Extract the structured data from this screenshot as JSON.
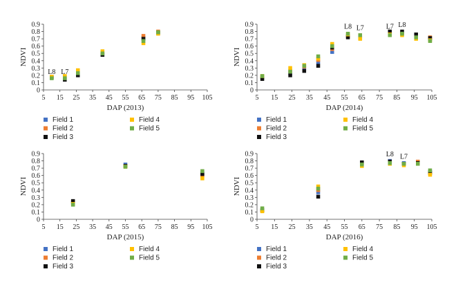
{
  "chart_data": [
    {
      "type": "scatter",
      "xlabel": "DAP (2013)",
      "ylabel": "NDVI",
      "xlim": [
        5,
        105
      ],
      "ylim": [
        0,
        0.9
      ],
      "xticks": [
        "5",
        "15",
        "25",
        "35",
        "45",
        "55",
        "65",
        "75",
        "85",
        "95",
        "105"
      ],
      "yticks": [
        "0",
        "0.1",
        "0.2",
        "0.3",
        "0.4",
        "0.5",
        "0.6",
        "0.7",
        "0.8",
        "0.9"
      ],
      "series": [
        {
          "name": "Field 1",
          "color": "#4472c4",
          "points": [
            [
              10,
              0.17
            ],
            [
              18,
              0.16
            ],
            [
              26,
              0.22
            ],
            [
              41,
              0.49
            ],
            [
              66,
              0.71
            ],
            [
              75,
              0.79
            ]
          ]
        },
        {
          "name": "Field 2",
          "color": "#ed7d31",
          "points": [
            [
              10,
              0.18
            ],
            [
              18,
              0.18
            ],
            [
              26,
              0.25
            ],
            [
              41,
              0.51
            ],
            [
              66,
              0.74
            ],
            [
              75,
              0.8
            ]
          ]
        },
        {
          "name": "Field 3",
          "color": "#111111",
          "points": [
            [
              10,
              0.17
            ],
            [
              18,
              0.14
            ],
            [
              26,
              0.2
            ],
            [
              41,
              0.48
            ],
            [
              66,
              0.7
            ],
            [
              75,
              0.78
            ]
          ]
        },
        {
          "name": "Field 4",
          "color": "#ffc000",
          "points": [
            [
              10,
              0.18
            ],
            [
              18,
              0.19
            ],
            [
              26,
              0.27
            ],
            [
              41,
              0.53
            ],
            [
              66,
              0.64
            ],
            [
              75,
              0.77
            ]
          ]
        },
        {
          "name": "Field 5",
          "color": "#70ad47",
          "points": [
            [
              10,
              0.16
            ],
            [
              18,
              0.16
            ],
            [
              26,
              0.23
            ],
            [
              41,
              0.5
            ],
            [
              66,
              0.67
            ],
            [
              75,
              0.79
            ]
          ]
        }
      ],
      "annotations": [
        {
          "text": "L8",
          "x": 10,
          "y": 0.22
        },
        {
          "text": "L7",
          "x": 18,
          "y": 0.22
        }
      ]
    },
    {
      "type": "scatter",
      "xlabel": "DAP (2014)",
      "ylabel": "NDVI",
      "xlim": [
        5,
        105
      ],
      "ylim": [
        0,
        0.9
      ],
      "xticks": [
        "5",
        "15",
        "25",
        "35",
        "45",
        "55",
        "65",
        "75",
        "85",
        "95",
        "105"
      ],
      "yticks": [
        "0",
        "0.1",
        "0.2",
        "0.3",
        "0.4",
        "0.5",
        "0.6",
        "0.7",
        "0.8",
        "0.9"
      ],
      "series": [
        {
          "name": "Field 1",
          "color": "#4472c4",
          "points": [
            [
              8,
              0.17
            ],
            [
              24,
              0.23
            ],
            [
              32,
              0.3
            ],
            [
              40,
              0.38
            ],
            [
              48,
              0.52
            ],
            [
              57,
              0.74
            ],
            [
              64,
              0.74
            ],
            [
              81,
              0.78
            ],
            [
              88,
              0.78
            ],
            [
              96,
              0.74
            ],
            [
              104,
              0.7
            ]
          ]
        },
        {
          "name": "Field 2",
          "color": "#ed7d31",
          "points": [
            [
              8,
              0.18
            ],
            [
              24,
              0.26
            ],
            [
              32,
              0.32
            ],
            [
              40,
              0.41
            ],
            [
              48,
              0.56
            ],
            [
              57,
              0.73
            ],
            [
              64,
              0.72
            ],
            [
              81,
              0.77
            ],
            [
              88,
              0.77
            ],
            [
              96,
              0.73
            ],
            [
              104,
              0.72
            ]
          ]
        },
        {
          "name": "Field 3",
          "color": "#111111",
          "points": [
            [
              8,
              0.15
            ],
            [
              24,
              0.2
            ],
            [
              32,
              0.26
            ],
            [
              40,
              0.33
            ],
            [
              48,
              0.58
            ],
            [
              57,
              0.72
            ],
            [
              64,
              0.71
            ],
            [
              81,
              0.8
            ],
            [
              88,
              0.8
            ],
            [
              96,
              0.76
            ],
            [
              104,
              0.71
            ]
          ]
        },
        {
          "name": "Field 4",
          "color": "#ffc000",
          "points": [
            [
              8,
              0.19
            ],
            [
              24,
              0.3
            ],
            [
              32,
              0.34
            ],
            [
              40,
              0.43
            ],
            [
              48,
              0.63
            ],
            [
              57,
              0.76
            ],
            [
              64,
              0.7
            ],
            [
              81,
              0.76
            ],
            [
              88,
              0.75
            ],
            [
              96,
              0.7
            ],
            [
              104,
              0.68
            ]
          ]
        },
        {
          "name": "Field 5",
          "color": "#70ad47",
          "points": [
            [
              8,
              0.19
            ],
            [
              24,
              0.25
            ],
            [
              32,
              0.33
            ],
            [
              40,
              0.46
            ],
            [
              48,
              0.6
            ],
            [
              57,
              0.77
            ],
            [
              64,
              0.75
            ],
            [
              81,
              0.75
            ],
            [
              88,
              0.77
            ],
            [
              96,
              0.72
            ],
            [
              104,
              0.67
            ]
          ]
        }
      ],
      "annotations": [
        {
          "text": "L8",
          "x": 57,
          "y": 0.84
        },
        {
          "text": "L7",
          "x": 64,
          "y": 0.82
        },
        {
          "text": "L7",
          "x": 81,
          "y": 0.84
        },
        {
          "text": "L8",
          "x": 88,
          "y": 0.86
        }
      ]
    },
    {
      "type": "scatter",
      "xlabel": "DAP (2015)",
      "ylabel": "NDVI",
      "xlim": [
        5,
        105
      ],
      "ylim": [
        0,
        0.9
      ],
      "xticks": [
        "5",
        "15",
        "25",
        "35",
        "45",
        "55",
        "65",
        "75",
        "85",
        "95",
        "105"
      ],
      "yticks": [
        "0",
        "0.1",
        "0.2",
        "0.3",
        "0.4",
        "0.5",
        "0.6",
        "0.7",
        "0.8",
        "0.9"
      ],
      "series": [
        {
          "name": "Field 1",
          "color": "#4472c4",
          "points": [
            [
              23,
              0.23
            ],
            [
              55,
              0.75
            ],
            [
              102,
              0.63
            ]
          ]
        },
        {
          "name": "Field 2",
          "color": "#ed7d31",
          "points": [
            [
              23,
              0.24
            ],
            [
              55,
              0.73
            ],
            [
              102,
              0.6
            ]
          ]
        },
        {
          "name": "Field 3",
          "color": "#111111",
          "points": [
            [
              23,
              0.25
            ],
            [
              55,
              0.73
            ],
            [
              102,
              0.62
            ]
          ]
        },
        {
          "name": "Field 4",
          "color": "#ffc000",
          "points": [
            [
              23,
              0.21
            ],
            [
              55,
              0.72
            ],
            [
              102,
              0.56
            ]
          ]
        },
        {
          "name": "Field 5",
          "color": "#70ad47",
          "points": [
            [
              23,
              0.2
            ],
            [
              55,
              0.72
            ],
            [
              102,
              0.66
            ]
          ]
        }
      ],
      "annotations": []
    },
    {
      "type": "scatter",
      "xlabel": "DAP (2016)",
      "ylabel": "NDVI",
      "xlim": [
        5,
        105
      ],
      "ylim": [
        0,
        0.9
      ],
      "xticks": [
        "5",
        "15",
        "25",
        "35",
        "45",
        "55",
        "65",
        "75",
        "85",
        "95",
        "105"
      ],
      "yticks": [
        "0",
        "0.1",
        "0.2",
        "0.3",
        "0.4",
        "0.5",
        "0.6",
        "0.7",
        "0.8",
        "0.9"
      ],
      "series": [
        {
          "name": "Field 1",
          "color": "#4472c4",
          "points": [
            [
              8,
              0.13
            ],
            [
              40,
              0.37
            ],
            [
              65,
              0.77
            ],
            [
              81,
              0.8
            ],
            [
              89,
              0.77
            ],
            [
              97,
              0.78
            ],
            [
              104,
              0.65
            ]
          ]
        },
        {
          "name": "Field 2",
          "color": "#ed7d31",
          "points": [
            [
              8,
              0.12
            ],
            [
              40,
              0.4
            ],
            [
              65,
              0.76
            ],
            [
              81,
              0.79
            ],
            [
              89,
              0.76
            ],
            [
              97,
              0.79
            ],
            [
              104,
              0.63
            ]
          ]
        },
        {
          "name": "Field 3",
          "color": "#111111",
          "points": [
            [
              8,
              0.12
            ],
            [
              40,
              0.31
            ],
            [
              65,
              0.78
            ],
            [
              81,
              0.79
            ],
            [
              89,
              0.76
            ],
            [
              97,
              0.77
            ],
            [
              104,
              0.64
            ]
          ]
        },
        {
          "name": "Field 4",
          "color": "#ffc000",
          "points": [
            [
              8,
              0.11
            ],
            [
              40,
              0.45
            ],
            [
              65,
              0.73
            ],
            [
              81,
              0.76
            ],
            [
              89,
              0.74
            ],
            [
              97,
              0.76
            ],
            [
              104,
              0.61
            ]
          ]
        },
        {
          "name": "Field 5",
          "color": "#70ad47",
          "points": [
            [
              8,
              0.15
            ],
            [
              40,
              0.42
            ],
            [
              65,
              0.75
            ],
            [
              81,
              0.77
            ],
            [
              89,
              0.76
            ],
            [
              97,
              0.76
            ],
            [
              104,
              0.67
            ]
          ]
        }
      ],
      "annotations": [
        {
          "text": "L8",
          "x": 81,
          "y": 0.86
        },
        {
          "text": "L7",
          "x": 89,
          "y": 0.83
        }
      ]
    }
  ]
}
